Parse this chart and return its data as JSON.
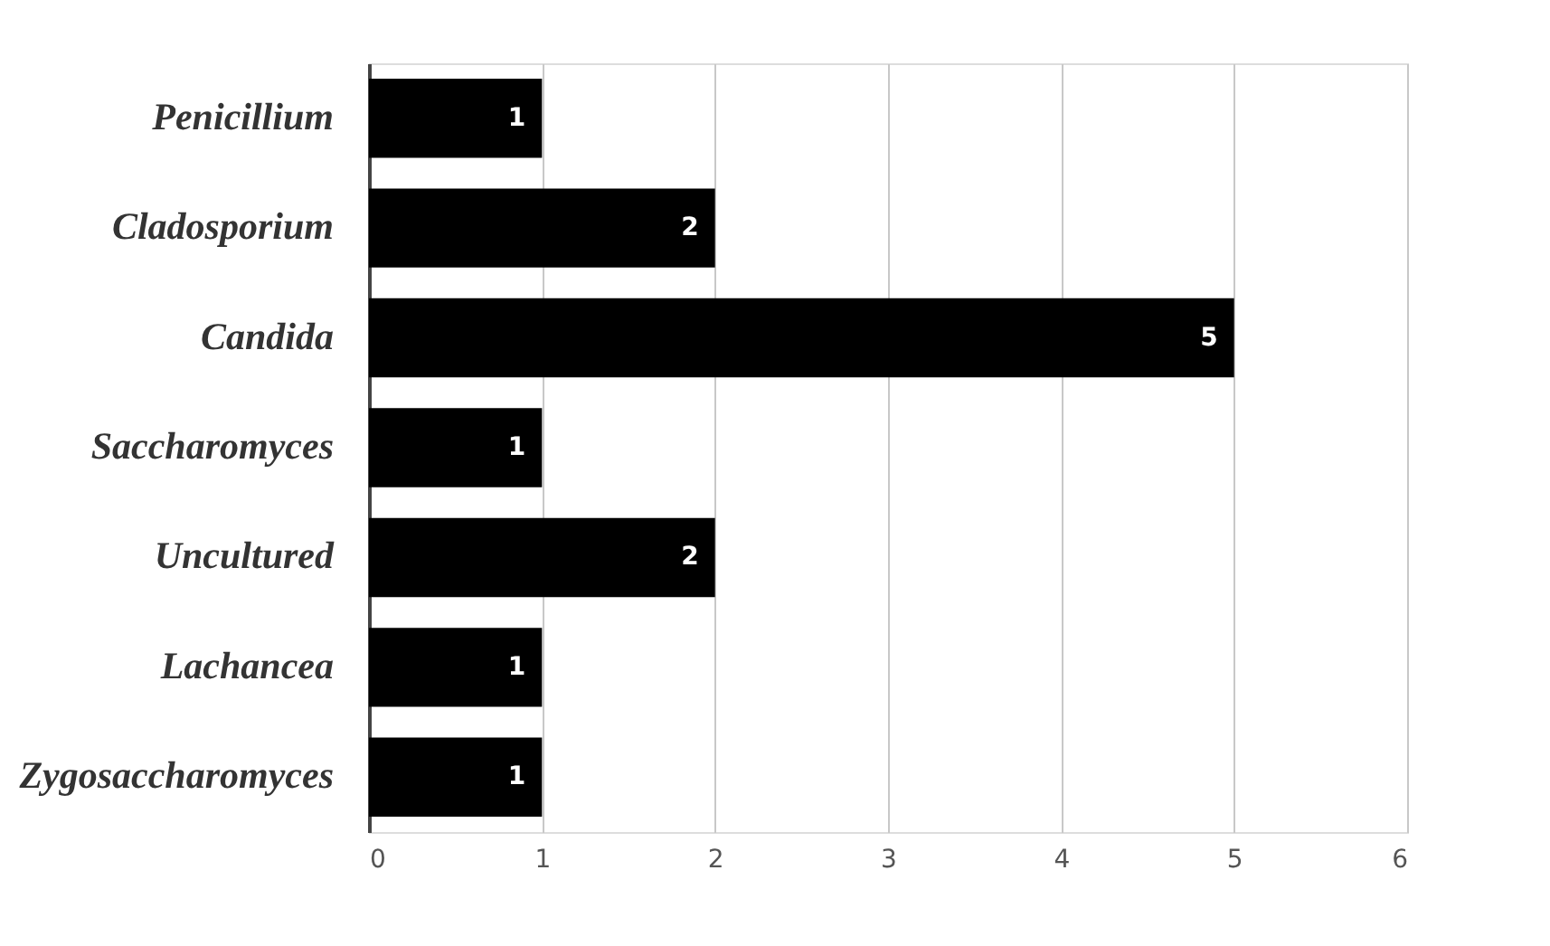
{
  "chart_data": {
    "type": "bar",
    "orientation": "horizontal",
    "categories": [
      "Penicillium",
      "Cladosporium",
      "Candida",
      "Saccharomyces",
      "Uncultured",
      "Lachancea",
      "Zygosaccharomyces"
    ],
    "values": [
      1,
      2,
      5,
      1,
      2,
      1,
      1
    ],
    "color": "#000000",
    "xlim": [
      0,
      6
    ],
    "xticks": [
      0,
      1,
      2,
      3,
      4,
      5,
      6
    ],
    "grid": "x",
    "data_labels": true
  }
}
